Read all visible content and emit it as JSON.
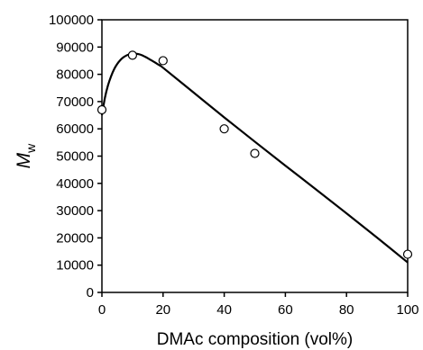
{
  "chart_data": {
    "type": "scatter",
    "title": "",
    "xlabel": "DMAc composition (vol%)",
    "ylabel": {
      "main": "M",
      "subscript": "w"
    },
    "xlim": [
      0,
      100
    ],
    "ylim": [
      0,
      100000
    ],
    "xticks": [
      0,
      20,
      40,
      60,
      80,
      100
    ],
    "yticks": [
      0,
      10000,
      20000,
      30000,
      40000,
      50000,
      60000,
      70000,
      80000,
      90000,
      100000
    ],
    "grid": false,
    "legend": "none",
    "series": [
      {
        "kind": "points",
        "marker": "open-circle",
        "x": [
          0,
          10,
          20,
          40,
          50,
          100
        ],
        "y": [
          67000,
          87000,
          85000,
          60000,
          51000,
          14000
        ]
      },
      {
        "kind": "fit-curve",
        "x": [
          0,
          1,
          2,
          3,
          4,
          5,
          6,
          7,
          8,
          9,
          10,
          11,
          12,
          13,
          14,
          15,
          16,
          17,
          18,
          19,
          20,
          30,
          40,
          50,
          60,
          70,
          80,
          90,
          100
        ],
        "y": [
          65000,
          71500,
          76000,
          79300,
          81900,
          83800,
          85200,
          86200,
          86900,
          87300,
          87500,
          87550,
          87400,
          87050,
          86500,
          85900,
          85250,
          84600,
          83900,
          83200,
          82400,
          73300,
          64200,
          55300,
          46500,
          37800,
          29000,
          20100,
          11000
        ]
      }
    ],
    "colors": {
      "axis": "#000000",
      "curve": "#000000",
      "marker_fill": "#ffffff",
      "marker_stroke": "#000000"
    }
  }
}
